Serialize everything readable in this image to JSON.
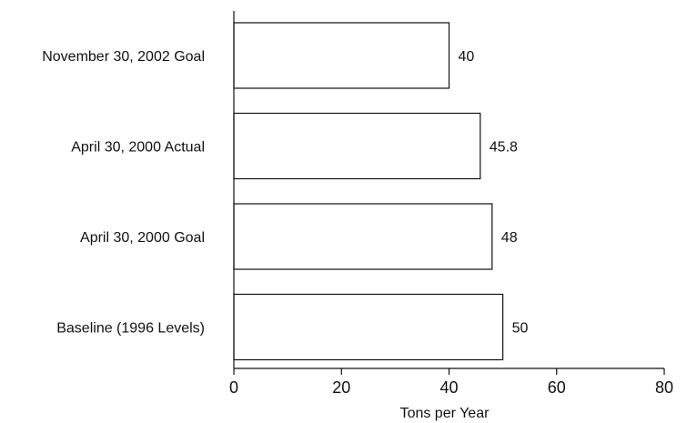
{
  "chart_data": {
    "type": "bar",
    "orientation": "horizontal",
    "title": "",
    "xlabel": "Tons per Year",
    "ylabel": "",
    "categories": [
      "November 30, 2002 Goal",
      "April 30, 2000 Actual",
      "April 30, 2000 Goal",
      "Baseline (1996 Levels)"
    ],
    "values": [
      40,
      45.8,
      48,
      50
    ],
    "value_labels": [
      "40",
      "45.8",
      "48",
      "50"
    ],
    "xlim": [
      0,
      80
    ],
    "xticks": [
      0,
      20,
      40,
      60,
      80
    ],
    "grid": false,
    "legend": "none",
    "colors": {
      "bar_fill": "#ffffff",
      "bar_stroke": "#111111",
      "text": "#111111"
    }
  }
}
